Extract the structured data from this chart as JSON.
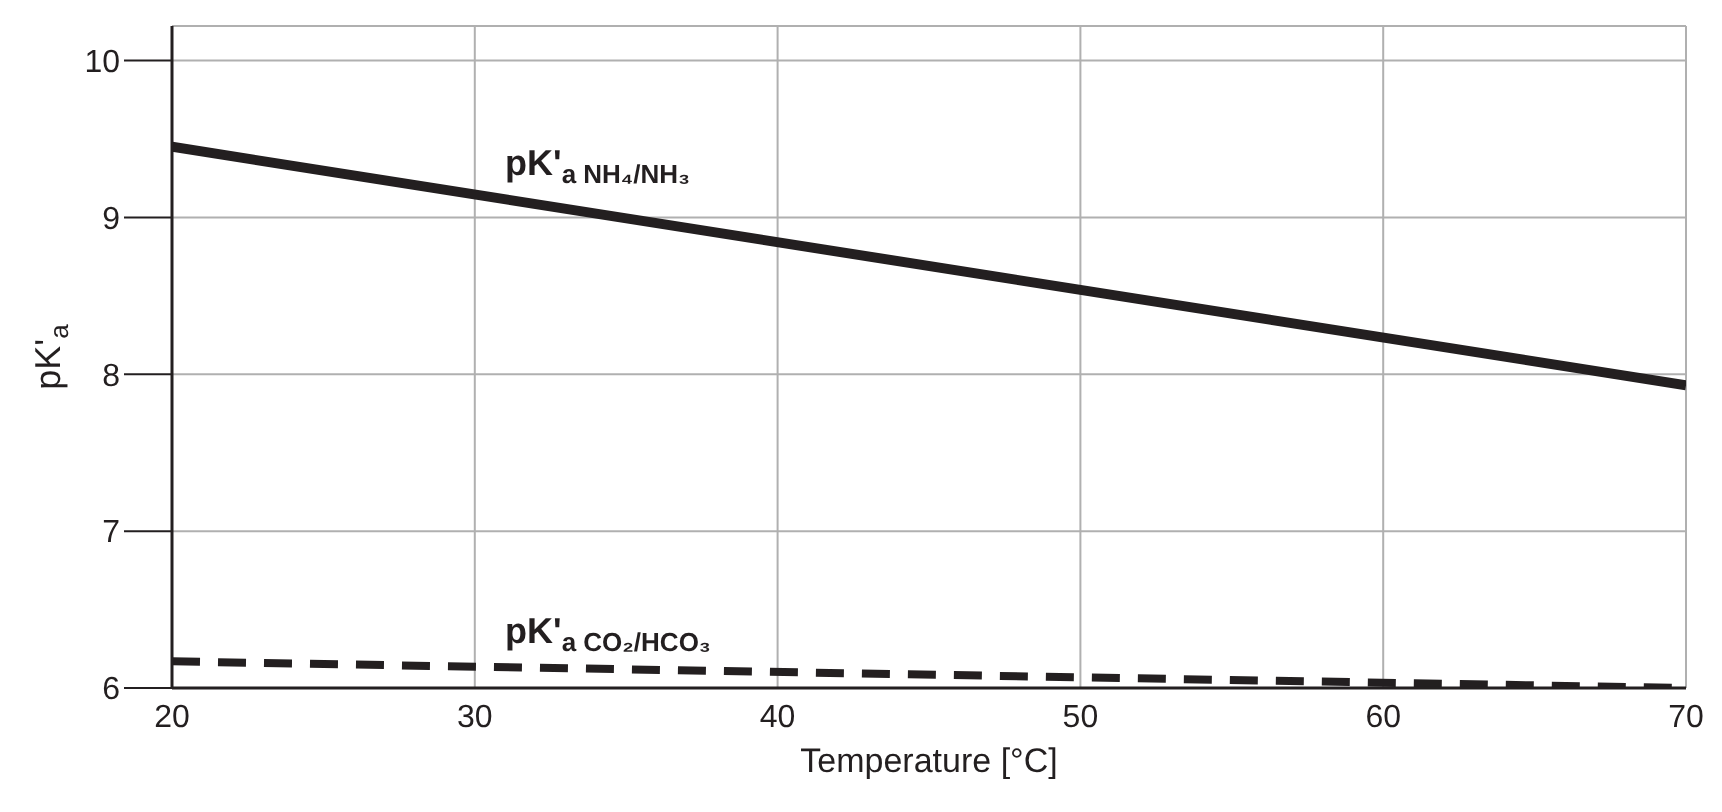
{
  "chart_data": {
    "type": "line",
    "xlabel": "Temperature  [°C]",
    "ylabel": "pK'$_{a}$",
    "x": [
      20,
      70
    ],
    "xlim": [
      20,
      70
    ],
    "xticks": [
      20,
      30,
      40,
      50,
      60,
      70
    ],
    "ylim": [
      6,
      10.22
    ],
    "yticks": [
      6,
      7,
      8,
      9,
      10
    ],
    "grid": true,
    "series": [
      {
        "name": "pK'$_{a NH₄/NH₃}$",
        "color": "#231f20",
        "values": [
          9.45,
          7.93
        ],
        "line_style": "solid"
      },
      {
        "name": "pK'$_{a CO₂/HCO₃}$",
        "color": "#231f20",
        "values": [
          6.17,
          6.0
        ],
        "line_style": "dashed"
      }
    ]
  }
}
